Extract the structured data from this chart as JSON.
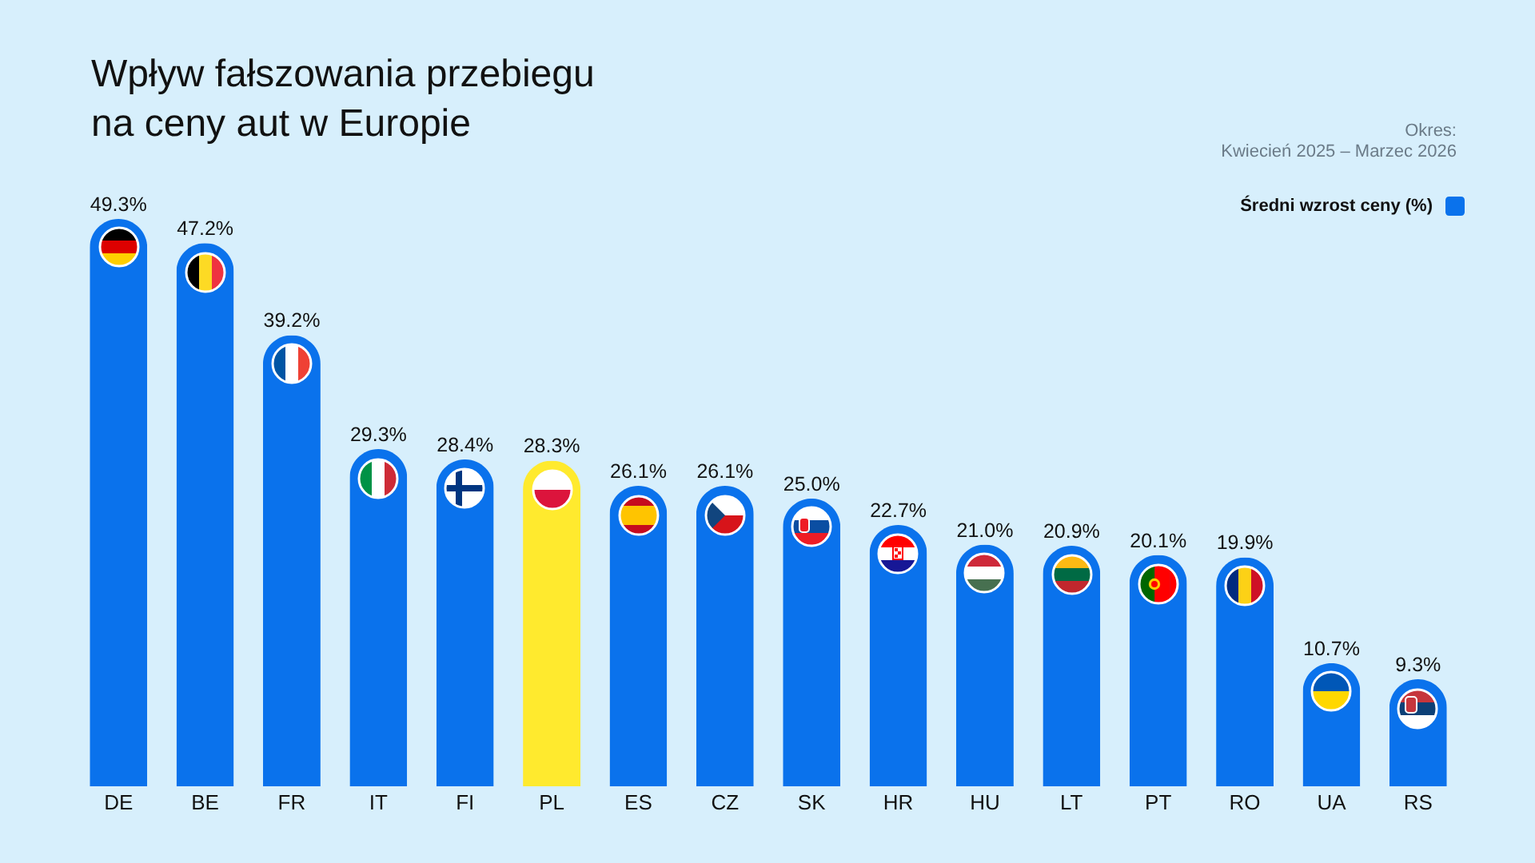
{
  "chart_data": {
    "type": "bar",
    "title": "Wpływ fałszowania przebiegu na ceny aut w Europie",
    "annotations": [
      "Okres:",
      "Kwiecień 2025 – Marzec 2026"
    ],
    "categories": [
      "DE",
      "BE",
      "FR",
      "IT",
      "FI",
      "PL",
      "ES",
      "CZ",
      "SK",
      "HR",
      "HU",
      "LT",
      "PT",
      "RO",
      "UA",
      "RS"
    ],
    "series": [
      {
        "name": "Średni wzrost ceny (%)",
        "color": "#0a72ec",
        "colors": [
          "#0a72ec",
          "#0a72ec",
          "#0a72ec",
          "#0a72ec",
          "#0a72ec",
          "#ffea2e",
          "#0a72ec",
          "#0a72ec",
          "#0a72ec",
          "#0a72ec",
          "#0a72ec",
          "#0a72ec",
          "#0a72ec",
          "#0a72ec",
          "#0a72ec",
          "#0a72ec"
        ],
        "values": [
          49.3,
          47.2,
          39.2,
          29.3,
          28.4,
          28.3,
          26.1,
          26.1,
          25.0,
          22.7,
          21.0,
          20.9,
          20.1,
          19.9,
          10.7,
          9.3
        ],
        "value_labels": [
          "49.3%",
          "47.2%",
          "39.2%",
          "29.3%",
          "28.4%",
          "28.3%",
          "26.1%",
          "26.1%",
          "25.0%",
          "22.7%",
          "21.0%",
          "20.9%",
          "20.1%",
          "19.9%",
          "10.7%",
          "9.3%"
        ]
      }
    ],
    "legend": "top right"
  }
}
